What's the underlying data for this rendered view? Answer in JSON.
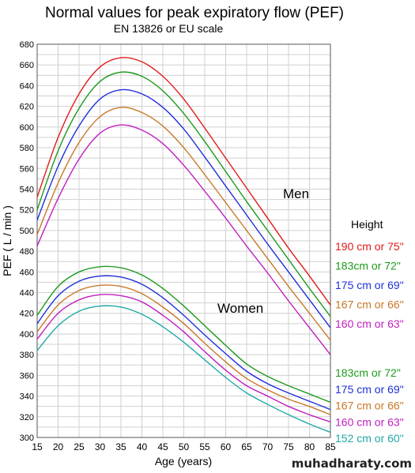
{
  "chart_data": {
    "type": "line",
    "title": "Normal values for peak expiratory flow (PEF)",
    "subtitle": "EN 13826 or EU scale",
    "xlabel": "Age (years)",
    "ylabel": "PEF ( L / min )",
    "xlim": [
      15,
      85
    ],
    "ylim": [
      300,
      680
    ],
    "x_ticks": [
      15,
      20,
      25,
      30,
      35,
      40,
      45,
      50,
      55,
      60,
      65,
      70,
      75,
      80,
      85
    ],
    "y_ticks": [
      300,
      320,
      340,
      360,
      380,
      400,
      420,
      440,
      460,
      480,
      500,
      520,
      540,
      560,
      580,
      600,
      620,
      640,
      660,
      680
    ],
    "grid": true,
    "group_labels": {
      "men": "Men",
      "women": "Women"
    },
    "legend_title": "Height",
    "x": [
      15,
      20,
      25,
      30,
      35,
      40,
      45,
      50,
      55,
      60,
      65,
      70,
      75,
      80,
      85
    ],
    "series": [
      {
        "group": "men",
        "name": "190 cm or 75\"",
        "color": "#e01b1b",
        "values": [
          532,
          590,
          632,
          658,
          667,
          663,
          649,
          627,
          599,
          570,
          541,
          512,
          483,
          456,
          428
        ]
      },
      {
        "group": "men",
        "name": "183cm or 72\"",
        "color": "#1e9a1e",
        "values": [
          520,
          577,
          618,
          644,
          653,
          649,
          635,
          613,
          586,
          557,
          528,
          500,
          472,
          444,
          417
        ]
      },
      {
        "group": "men",
        "name": "175 cm or 69\"",
        "color": "#2030d8",
        "values": [
          510,
          562,
          601,
          627,
          636,
          632,
          619,
          598,
          571,
          543,
          515,
          487,
          460,
          433,
          406
        ]
      },
      {
        "group": "men",
        "name": "167 cm or 66\"",
        "color": "#c87828",
        "values": [
          496,
          546,
          585,
          610,
          619,
          614,
          601,
          580,
          554,
          527,
          500,
          473,
          446,
          420,
          394
        ]
      },
      {
        "group": "men",
        "name": "160 cm or 63\"",
        "color": "#c020c0",
        "values": [
          485,
          531,
          569,
          594,
          602,
          597,
          584,
          563,
          538,
          512,
          485,
          459,
          432,
          406,
          380
        ]
      },
      {
        "group": "women",
        "name": "183cm or 72\"",
        "color": "#1e9a1e",
        "values": [
          418,
          446,
          460,
          465,
          464,
          457,
          444,
          427,
          408,
          389,
          371,
          359,
          350,
          342,
          334
        ]
      },
      {
        "group": "women",
        "name": "175 cm or 69\"",
        "color": "#2030d8",
        "values": [
          410,
          437,
          451,
          456,
          455,
          448,
          435,
          418,
          399,
          381,
          364,
          352,
          343,
          335,
          327
        ]
      },
      {
        "group": "women",
        "name": "167 cm or 66\"",
        "color": "#c87828",
        "values": [
          402,
          428,
          442,
          447,
          446,
          439,
          426,
          410,
          391,
          373,
          357,
          346,
          337,
          330,
          322
        ]
      },
      {
        "group": "women",
        "name": "160 cm or 63\"",
        "color": "#c020c0",
        "values": [
          395,
          420,
          433,
          438,
          437,
          431,
          418,
          402,
          383,
          365,
          350,
          340,
          330,
          322,
          315
        ]
      },
      {
        "group": "women",
        "name": "152 cm or 60\"",
        "color": "#20a8a8",
        "values": [
          384,
          408,
          422,
          427,
          426,
          419,
          407,
          392,
          375,
          358,
          343,
          332,
          322,
          313,
          305
        ]
      }
    ]
  },
  "watermark": "muhadharaty.com"
}
